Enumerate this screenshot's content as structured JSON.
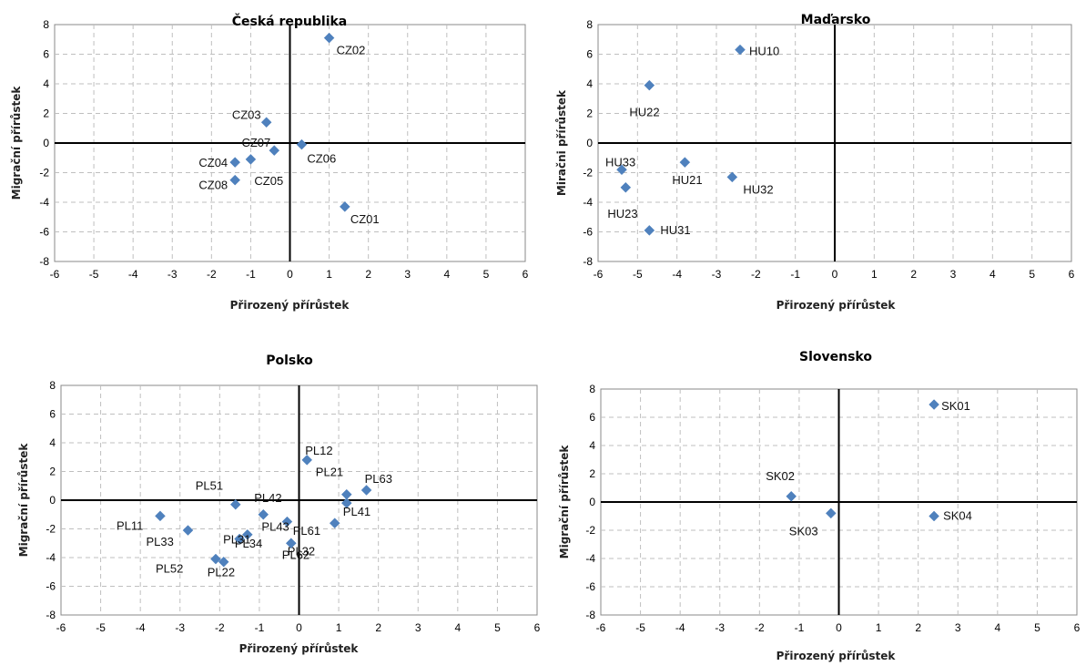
{
  "colors": {
    "marker": "#4F81BD",
    "grid": "#BFBFBF",
    "axis": "#000000",
    "border": "#888888"
  },
  "chart_data": [
    {
      "type": "scatter",
      "title": "Česká republika",
      "xlabel": "Přirozený přírůstek",
      "ylabel": "Migrační přírůstek",
      "xlim": [
        -6,
        6
      ],
      "ylim": [
        -8,
        8
      ],
      "xticks": [
        "-6",
        "-5",
        "-4",
        "-3",
        "-2",
        "-1",
        "0",
        "1",
        "2",
        "3",
        "4",
        "5",
        "6"
      ],
      "yticks": [
        "8",
        "6",
        "4",
        "2",
        "0",
        "-2",
        "-4",
        "-6",
        "-8"
      ],
      "grid": true,
      "points": [
        {
          "label": "CZ02",
          "x": 1.0,
          "y": 7.1
        },
        {
          "label": "CZ03",
          "x": -0.6,
          "y": 1.4
        },
        {
          "label": "CZ07",
          "x": -0.4,
          "y": -0.5
        },
        {
          "label": "CZ06",
          "x": 0.3,
          "y": -0.1
        },
        {
          "label": "CZ04",
          "x": -1.4,
          "y": -1.3
        },
        {
          "label": "CZ05",
          "x": -1.0,
          "y": -1.1
        },
        {
          "label": "CZ08",
          "x": -1.4,
          "y": -2.5
        },
        {
          "label": "CZ01",
          "x": 1.4,
          "y": -4.3
        }
      ]
    },
    {
      "type": "scatter",
      "title": "Maďarsko",
      "xlabel": "Přirozený přírůstek",
      "ylabel": "Miračni přírůstek",
      "xlim": [
        -6,
        6
      ],
      "ylim": [
        -8,
        8
      ],
      "xticks": [
        "-6",
        "-5",
        "-4",
        "-3",
        "-2",
        "-1",
        "0",
        "1",
        "2",
        "3",
        "4",
        "5",
        "6"
      ],
      "yticks": [
        "8",
        "6",
        "4",
        "2",
        "0",
        "-2",
        "-4",
        "-6",
        "-8"
      ],
      "grid": true,
      "points": [
        {
          "label": "HU10",
          "x": -2.4,
          "y": 6.3
        },
        {
          "label": "HU22",
          "x": -4.7,
          "y": 3.9
        },
        {
          "label": "HU33",
          "x": -5.4,
          "y": -1.8
        },
        {
          "label": "HU21",
          "x": -3.8,
          "y": -1.3
        },
        {
          "label": "HU32",
          "x": -2.6,
          "y": -2.3
        },
        {
          "label": "HU23",
          "x": -5.3,
          "y": -3.0
        },
        {
          "label": "HU31",
          "x": -4.7,
          "y": -5.9
        }
      ]
    },
    {
      "type": "scatter",
      "title": "Polsko",
      "xlabel": "Přirozený přírůstek",
      "ylabel": "Migrační přírůstek",
      "xlim": [
        -6,
        6
      ],
      "ylim": [
        -8,
        8
      ],
      "xticks": [
        "-6",
        "-5",
        "-4",
        "-3",
        "-2",
        "-1",
        "0",
        "1",
        "2",
        "3",
        "4",
        "5",
        "6"
      ],
      "yticks": [
        "8",
        "6",
        "4",
        "2",
        "0",
        "-2",
        "-4",
        "-6",
        "-8"
      ],
      "grid": true,
      "points": [
        {
          "label": "PL12",
          "x": 0.2,
          "y": 2.8
        },
        {
          "label": "PL21",
          "x": 1.2,
          "y": 0.4
        },
        {
          "label": "PL63",
          "x": 1.7,
          "y": 0.7
        },
        {
          "label": "PL41",
          "x": 1.2,
          "y": -0.2
        },
        {
          "label": "PL51",
          "x": -1.6,
          "y": -0.3
        },
        {
          "label": "PL42",
          "x": -0.9,
          "y": -1.0
        },
        {
          "label": "PL43",
          "x": -0.3,
          "y": -1.5
        },
        {
          "label": "PL61",
          "x": 0.9,
          "y": -1.6
        },
        {
          "label": "PL32",
          "x": -0.2,
          "y": -3.0
        },
        {
          "label": "PL11",
          "x": -3.5,
          "y": -1.1
        },
        {
          "label": "PL33",
          "x": -2.8,
          "y": -2.1
        },
        {
          "label": "PL34",
          "x": -1.3,
          "y": -2.4
        },
        {
          "label": "PL31",
          "x": -1.5,
          "y": -2.7
        },
        {
          "label": "PL52",
          "x": -2.1,
          "y": -4.1
        },
        {
          "label": "PL22",
          "x": -1.9,
          "y": -4.3
        },
        {
          "label": "PL62",
          "x": -0.2,
          "y": -3.0
        }
      ]
    },
    {
      "type": "scatter",
      "title": "Slovensko",
      "xlabel": "Přirozený přírůstek",
      "ylabel": "Migrační přírůstek",
      "xlim": [
        -6,
        6
      ],
      "ylim": [
        -8,
        8
      ],
      "xticks": [
        "-6",
        "-5",
        "-4",
        "-3",
        "-2",
        "-1",
        "0",
        "1",
        "2",
        "3",
        "4",
        "5",
        "6"
      ],
      "yticks": [
        "8",
        "6",
        "4",
        "2",
        "0",
        "-2",
        "-4",
        "-6",
        "-8"
      ],
      "grid": true,
      "points": [
        {
          "label": "SK01",
          "x": 2.4,
          "y": 6.9
        },
        {
          "label": "SK02",
          "x": -1.2,
          "y": 0.4
        },
        {
          "label": "SK03",
          "x": -0.2,
          "y": -0.8
        },
        {
          "label": "SK04",
          "x": 2.4,
          "y": -1.0
        }
      ]
    }
  ]
}
